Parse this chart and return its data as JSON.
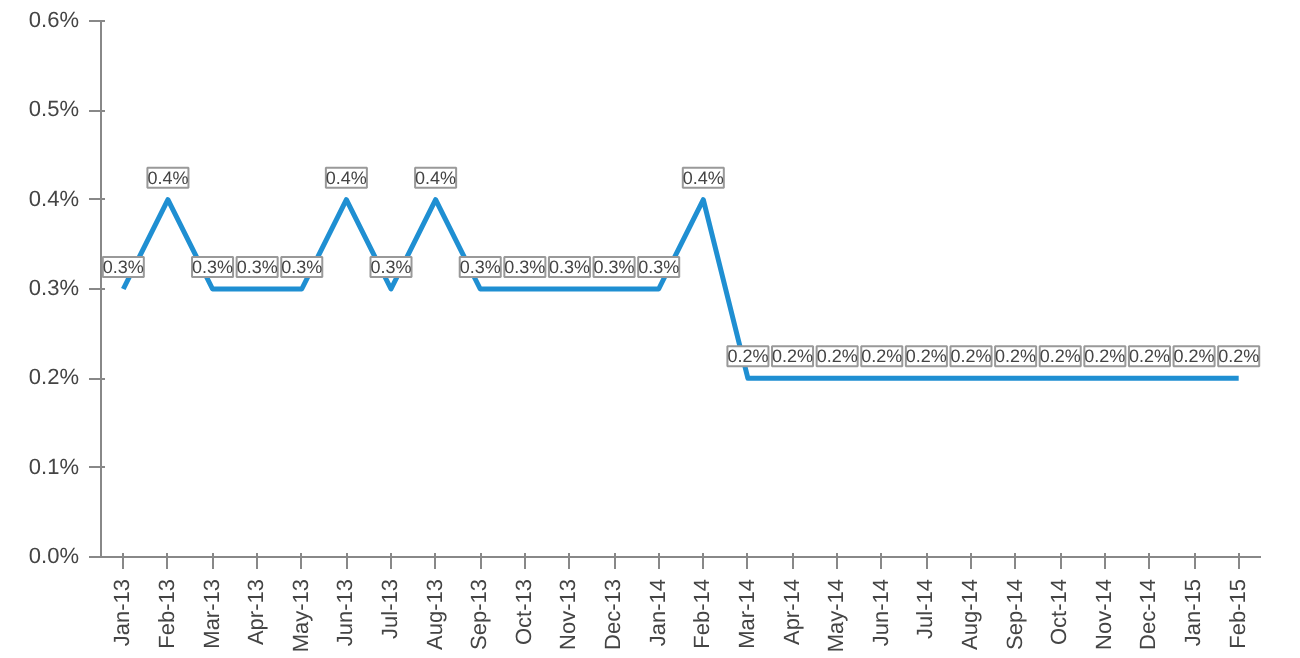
{
  "chart_data": {
    "type": "line",
    "categories": [
      "Jan-13",
      "Feb-13",
      "Mar-13",
      "Apr-13",
      "May-13",
      "Jun-13",
      "Jul-13",
      "Aug-13",
      "Sep-13",
      "Oct-13",
      "Nov-13",
      "Dec-13",
      "Jan-14",
      "Feb-14",
      "Mar-14",
      "Apr-14",
      "May-14",
      "Jun-14",
      "Jul-14",
      "Aug-14",
      "Sep-14",
      "Oct-14",
      "Nov-14",
      "Dec-14",
      "Jan-15",
      "Feb-15"
    ],
    "series": [
      {
        "color": "#1f8fd2",
        "values": [
          0.3,
          0.4,
          0.3,
          0.3,
          0.3,
          0.4,
          0.3,
          0.4,
          0.3,
          0.3,
          0.3,
          0.3,
          0.3,
          0.4,
          0.2,
          0.2,
          0.2,
          0.2,
          0.2,
          0.2,
          0.2,
          0.2,
          0.2,
          0.2,
          0.2,
          0.2
        ],
        "value_labels": [
          "0.3%",
          "0.4%",
          "0.3%",
          "0.3%",
          "0.3%",
          "0.4%",
          "0.3%",
          "0.4%",
          "0.3%",
          "0.3%",
          "0.3%",
          "0.3%",
          "0.3%",
          "0.4%",
          "0.2%",
          "0.2%",
          "0.2%",
          "0.2%",
          "0.2%",
          "0.2%",
          "0.2%",
          "0.2%",
          "0.2%",
          "0.2%",
          "0.2%",
          "0.2%"
        ]
      }
    ],
    "ylim": [
      0,
      0.6
    ],
    "yticks": [
      {
        "value": 0,
        "label": "0.0%"
      },
      {
        "value": 0.1,
        "label": "0.1%"
      },
      {
        "value": 0.2,
        "label": "0.2%"
      },
      {
        "value": 0.3,
        "label": "0.3%"
      },
      {
        "value": 0.4,
        "label": "0.4%"
      },
      {
        "value": 0.5,
        "label": "0.5%"
      },
      {
        "value": 0.6,
        "label": "0.6%"
      }
    ],
    "grid": false,
    "marker": "none",
    "line_style": "solid"
  }
}
